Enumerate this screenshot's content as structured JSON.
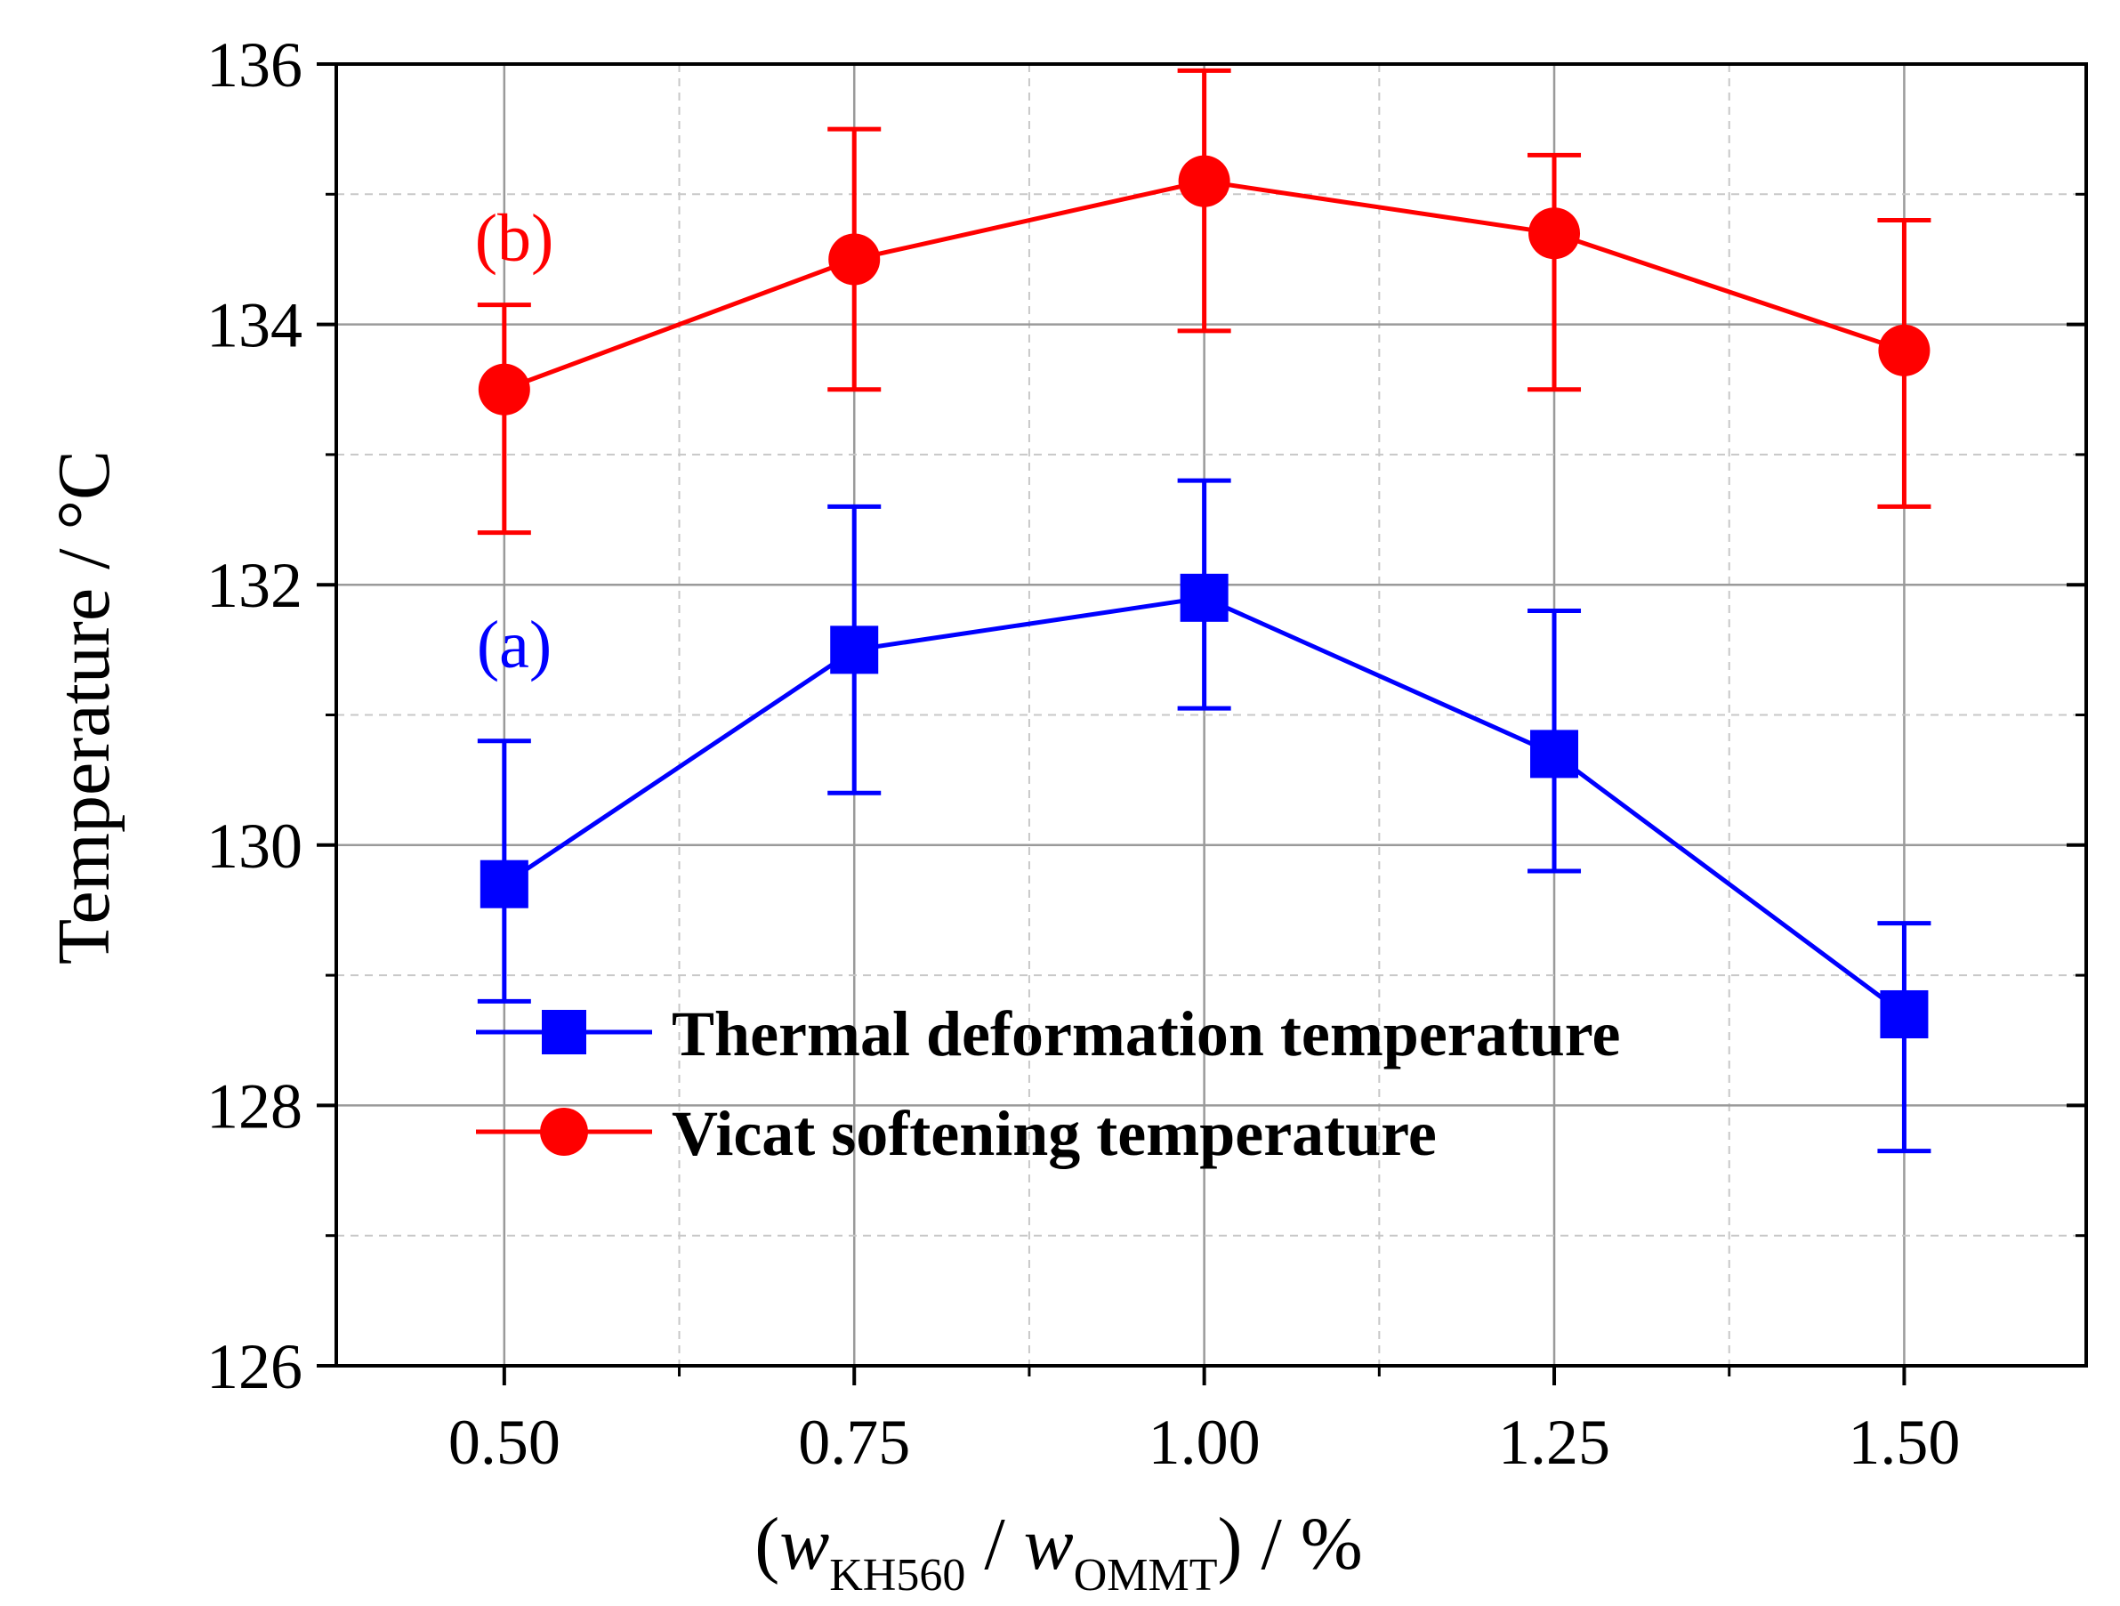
{
  "chart_data": {
    "type": "line",
    "title": "",
    "xlabel": {
      "open": "(",
      "w1": "w",
      "sub1": "KH560",
      "slash": " / ",
      "w2": "w",
      "sub2": "OMMT",
      "close": ") / %"
    },
    "ylabel": "Temperature / °C",
    "xlim": [
      0.38,
      1.63
    ],
    "ylim": [
      126,
      136
    ],
    "x": [
      0.5,
      0.75,
      1.0,
      1.25,
      1.5
    ],
    "xticks": [
      0.5,
      0.75,
      1.0,
      1.25,
      1.5
    ],
    "xtick_labels": [
      "0.50",
      "0.75",
      "1.00",
      "1.25",
      "1.50"
    ],
    "xminor": [
      0.625,
      0.875,
      1.125,
      1.375
    ],
    "yticks": [
      126,
      128,
      130,
      132,
      134,
      136
    ],
    "ytick_labels": [
      "126",
      "128",
      "130",
      "132",
      "134",
      "136"
    ],
    "yminor": [
      127,
      129,
      131,
      133,
      135
    ],
    "grid": true,
    "legend_position": "lower-center",
    "series": [
      {
        "name": "Thermal deformation temperature",
        "tag": "(a)",
        "marker": "square",
        "color": "#0000ff",
        "values": [
          129.7,
          131.5,
          131.9,
          130.7,
          128.7
        ],
        "err_low": [
          128.8,
          130.4,
          131.05,
          129.8,
          127.65
        ],
        "err_high": [
          130.8,
          132.6,
          132.8,
          131.8,
          129.4
        ]
      },
      {
        "name": "Vicat softening temperature",
        "tag": "(b)",
        "marker": "circle",
        "color": "#ff0000",
        "values": [
          133.5,
          134.5,
          135.1,
          134.7,
          133.8
        ],
        "err_low": [
          132.4,
          133.5,
          133.95,
          133.5,
          132.6
        ],
        "err_high": [
          134.15,
          135.5,
          135.95,
          135.3,
          134.8
        ]
      }
    ]
  }
}
